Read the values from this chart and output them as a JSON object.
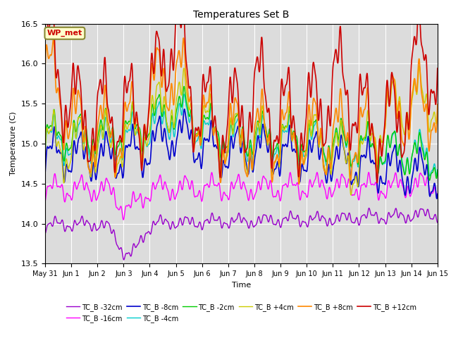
{
  "title": "Temperatures Set B",
  "xlabel": "Time",
  "ylabel": "Temperature (C)",
  "ylim": [
    13.5,
    16.5
  ],
  "yticks": [
    13.5,
    14.0,
    14.5,
    15.0,
    15.5,
    16.0,
    16.5
  ],
  "plot_bg_color": "#dcdcdc",
  "annotation_text": "WP_met",
  "annotation_bg": "#ffffcc",
  "annotation_border": "#888833",
  "series": [
    {
      "label": "TC_B -32cm",
      "color": "#9900cc",
      "lw": 1.0
    },
    {
      "label": "TC_B -16cm",
      "color": "#ff00ff",
      "lw": 1.0
    },
    {
      "label": "TC_B -8cm",
      "color": "#0000cc",
      "lw": 1.2
    },
    {
      "label": "TC_B -4cm",
      "color": "#00cccc",
      "lw": 1.0
    },
    {
      "label": "TC_B -2cm",
      "color": "#00cc00",
      "lw": 1.0
    },
    {
      "label": "TC_B +4cm",
      "color": "#cccc00",
      "lw": 1.0
    },
    {
      "label": "TC_B +8cm",
      "color": "#ff8800",
      "lw": 1.2
    },
    {
      "label": "TC_B +12cm",
      "color": "#cc0000",
      "lw": 1.2
    }
  ],
  "x_tick_labels": [
    "May 31",
    "Jun 1",
    "Jun 2",
    "Jun 3",
    "Jun 4",
    "Jun 5",
    "Jun 6",
    "Jun 7",
    "Jun 8",
    "Jun 9",
    "Jun 10",
    "Jun 11",
    "Jun 12",
    "Jun 13",
    "Jun 14",
    "Jun 15"
  ],
  "end_day": 15,
  "n_points": 2160
}
